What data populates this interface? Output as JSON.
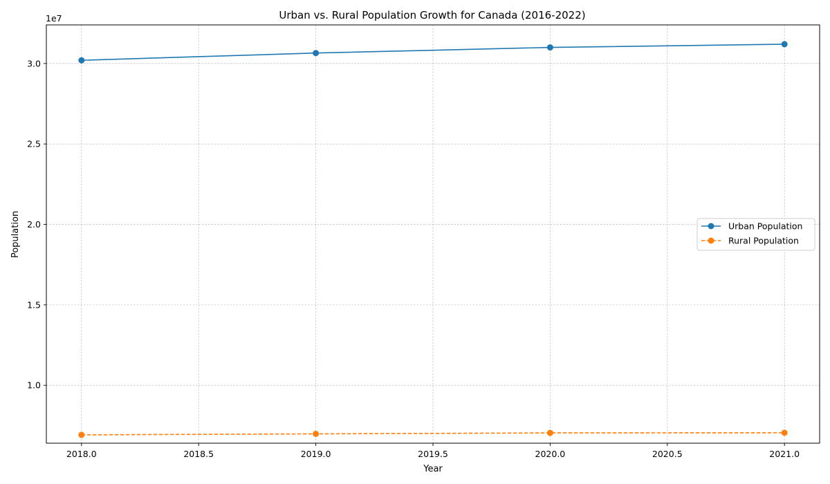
{
  "chart_data": {
    "type": "line",
    "title": "Urban vs. Rural Population Growth for Canada (2016-2022)",
    "xlabel": "Year",
    "ylabel": "Population",
    "y_offset_label": "1e7",
    "x": [
      2018,
      2019,
      2020,
      2021
    ],
    "xlim": [
      2017.85,
      2021.15
    ],
    "ylim": [
      6400000,
      32400000
    ],
    "x_ticks": [
      2018.0,
      2018.5,
      2019.0,
      2019.5,
      2020.0,
      2020.5,
      2021.0
    ],
    "x_tick_labels": [
      "2018.0",
      "2018.5",
      "2019.0",
      "2019.5",
      "2020.0",
      "2020.5",
      "2021.0"
    ],
    "y_ticks": [
      10000000,
      15000000,
      20000000,
      25000000,
      30000000
    ],
    "y_tick_labels": [
      "1.0",
      "1.5",
      "2.0",
      "2.5",
      "3.0"
    ],
    "grid": true,
    "legend_position": "center-right",
    "series": [
      {
        "name": "Urban Population",
        "values": [
          30200000,
          30650000,
          31000000,
          31200000
        ],
        "color": "#1f77b4",
        "line_style": "solid",
        "marker": "circle"
      },
      {
        "name": "Rural Population",
        "values": [
          6920000,
          6980000,
          7040000,
          7050000
        ],
        "color": "#ff7f0e",
        "line_style": "dashed",
        "marker": "circle"
      }
    ]
  }
}
